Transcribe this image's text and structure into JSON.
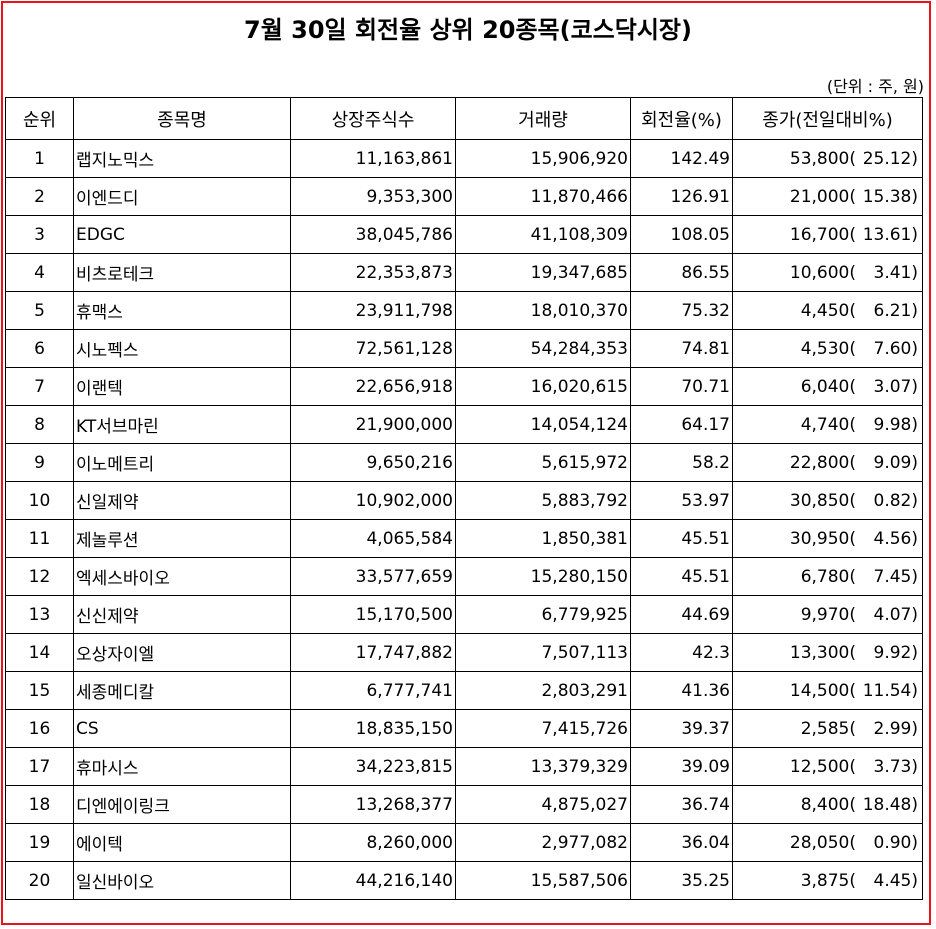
{
  "title": "7월 30일 회전율 상위 20종목(코스닥시장)",
  "unit_note": "(단위 : 주, 원)",
  "columns": [
    "순위",
    "종목명",
    "상장주식수",
    "거래량",
    "회전율(%)",
    "종가(전일대비%)"
  ],
  "rows": [
    {
      "rank": "1",
      "name": "랩지노믹스",
      "listed": "11,163,861",
      "volume": "15,906,920",
      "turnover": "142.49",
      "close": "53,800(",
      "change": "25.12)"
    },
    {
      "rank": "2",
      "name": "이엔드디",
      "listed": "9,353,300",
      "volume": "11,870,466",
      "turnover": "126.91",
      "close": "21,000(",
      "change": "15.38)"
    },
    {
      "rank": "3",
      "name": "EDGC",
      "listed": "38,045,786",
      "volume": "41,108,309",
      "turnover": "108.05",
      "close": "16,700(",
      "change": "13.61)"
    },
    {
      "rank": "4",
      "name": "비츠로테크",
      "listed": "22,353,873",
      "volume": "19,347,685",
      "turnover": "86.55",
      "close": "10,600(",
      "change": "3.41)"
    },
    {
      "rank": "5",
      "name": "휴맥스",
      "listed": "23,911,798",
      "volume": "18,010,370",
      "turnover": "75.32",
      "close": "4,450(",
      "change": "6.21)"
    },
    {
      "rank": "6",
      "name": "시노펙스",
      "listed": "72,561,128",
      "volume": "54,284,353",
      "turnover": "74.81",
      "close": "4,530(",
      "change": "7.60)"
    },
    {
      "rank": "7",
      "name": "이랜텍",
      "listed": "22,656,918",
      "volume": "16,020,615",
      "turnover": "70.71",
      "close": "6,040(",
      "change": "3.07)"
    },
    {
      "rank": "8",
      "name": "KT서브마린",
      "listed": "21,900,000",
      "volume": "14,054,124",
      "turnover": "64.17",
      "close": "4,740(",
      "change": "9.98)"
    },
    {
      "rank": "9",
      "name": "이노메트리",
      "listed": "9,650,216",
      "volume": "5,615,972",
      "turnover": "58.2",
      "close": "22,800(",
      "change": "9.09)"
    },
    {
      "rank": "10",
      "name": "신일제약",
      "listed": "10,902,000",
      "volume": "5,883,792",
      "turnover": "53.97",
      "close": "30,850(",
      "change": "0.82)"
    },
    {
      "rank": "11",
      "name": "제놀루션",
      "listed": "4,065,584",
      "volume": "1,850,381",
      "turnover": "45.51",
      "close": "30,950(",
      "change": "4.56)"
    },
    {
      "rank": "12",
      "name": "엑세스바이오",
      "listed": "33,577,659",
      "volume": "15,280,150",
      "turnover": "45.51",
      "close": "6,780(",
      "change": "7.45)"
    },
    {
      "rank": "13",
      "name": "신신제약",
      "listed": "15,170,500",
      "volume": "6,779,925",
      "turnover": "44.69",
      "close": "9,970(",
      "change": "4.07)"
    },
    {
      "rank": "14",
      "name": "오상자이엘",
      "listed": "17,747,882",
      "volume": "7,507,113",
      "turnover": "42.3",
      "close": "13,300(",
      "change": "9.92)"
    },
    {
      "rank": "15",
      "name": "세종메디칼",
      "listed": "6,777,741",
      "volume": "2,803,291",
      "turnover": "41.36",
      "close": "14,500(",
      "change": "11.54)"
    },
    {
      "rank": "16",
      "name": "CS",
      "listed": "18,835,150",
      "volume": "7,415,726",
      "turnover": "39.37",
      "close": "2,585(",
      "change": "2.99)"
    },
    {
      "rank": "17",
      "name": "휴마시스",
      "listed": "34,223,815",
      "volume": "13,379,329",
      "turnover": "39.09",
      "close": "12,500(",
      "change": "3.73)"
    },
    {
      "rank": "18",
      "name": "디엔에이링크",
      "listed": "13,268,377",
      "volume": "4,875,027",
      "turnover": "36.74",
      "close": "8,400(",
      "change": "18.48)"
    },
    {
      "rank": "19",
      "name": "에이텍",
      "listed": "8,260,000",
      "volume": "2,977,082",
      "turnover": "36.04",
      "close": "28,050(",
      "change": "0.90)"
    },
    {
      "rank": "20",
      "name": "일신바이오",
      "listed": "44,216,140",
      "volume": "15,587,506",
      "turnover": "35.25",
      "close": "3,875(",
      "change": "4.45)"
    }
  ],
  "colors": {
    "frame": "#e8141c"
  }
}
